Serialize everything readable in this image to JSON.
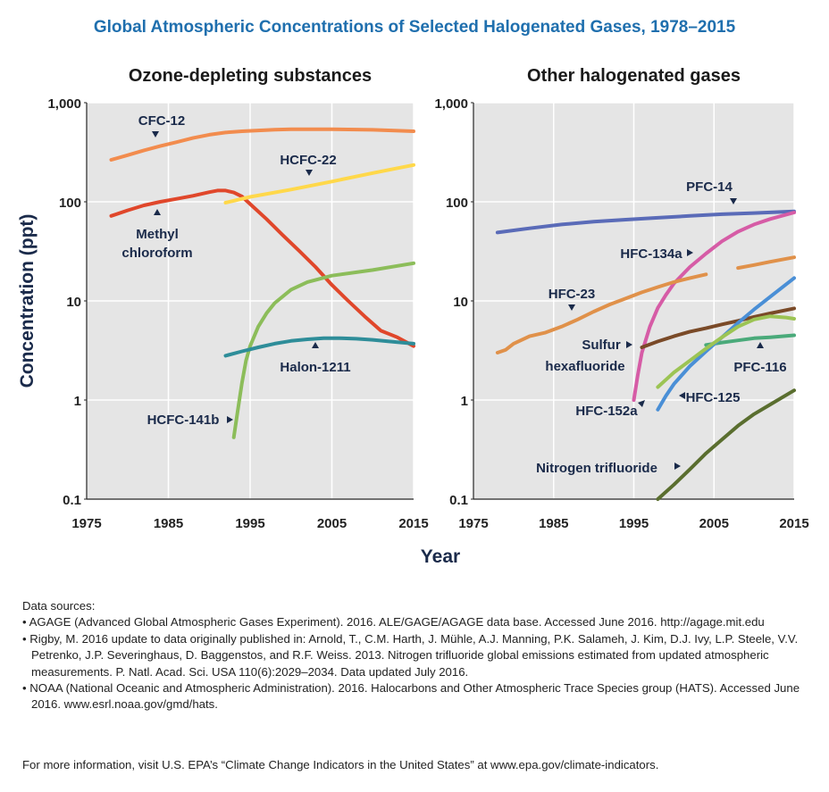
{
  "title": "Global Atmospheric Concentrations of Selected Halogenated Gases, 1978–2015",
  "y_axis_label": "Concentration (ppt)",
  "x_axis_label": "Year",
  "colors": {
    "title": "#1f6fae",
    "plot_bg": "#e5e5e5",
    "grid": "#ffffff",
    "axis_text": "#222222"
  },
  "chart_data": [
    {
      "type": "line",
      "title": "Ozone-depleting substances",
      "xlim": [
        1975,
        2015
      ],
      "ylim": [
        0.1,
        1000
      ],
      "yscale": "log",
      "x_ticks": [
        1975,
        1985,
        1995,
        2005,
        2015
      ],
      "x_tick_labels": [
        "1975",
        "1985",
        "1995",
        "2005",
        "2015"
      ],
      "y_ticks": [
        0.1,
        1,
        10,
        100,
        1000
      ],
      "y_tick_labels": [
        "0.1",
        "1",
        "10",
        "100",
        "1,000"
      ],
      "grid": true,
      "series": [
        {
          "name": "CFC-12",
          "color": "#f28c4e",
          "x": [
            1978,
            1980,
            1982,
            1984,
            1986,
            1988,
            1990,
            1992,
            1994,
            1996,
            1998,
            2000,
            2005,
            2010,
            2015
          ],
          "y": [
            265,
            295,
            330,
            365,
            400,
            440,
            475,
            500,
            515,
            525,
            535,
            540,
            540,
            532,
            515
          ]
        },
        {
          "name": "Methyl chloroform",
          "color": "#e0472b",
          "x": [
            1978,
            1980,
            1982,
            1984,
            1986,
            1988,
            1990,
            1991,
            1992,
            1993,
            1994,
            1995,
            1997,
            1999,
            2001,
            2003,
            2005,
            2007,
            2009,
            2011,
            2013,
            2015
          ],
          "y": [
            72,
            82,
            92,
            100,
            107,
            115,
            125,
            130,
            130,
            124,
            113,
            95,
            67,
            46,
            32,
            22,
            14.5,
            10,
            7,
            5,
            4.3,
            3.5
          ]
        },
        {
          "name": "HCFC-22",
          "color": "#ffd84a",
          "x": [
            1992,
            1995,
            2000,
            2005,
            2010,
            2015
          ],
          "y": [
            98,
            112,
            133,
            160,
            195,
            235
          ]
        },
        {
          "name": "HCFC-141b",
          "color": "#8cbd5a",
          "x": [
            1993,
            1993.5,
            1994,
            1994.5,
            1995,
            1996,
            1997,
            1998,
            2000,
            2002,
            2005,
            2010,
            2015
          ],
          "y": [
            0.42,
            0.8,
            1.5,
            2.5,
            3.5,
            5.5,
            7.5,
            9.5,
            13,
            15.5,
            18,
            20.5,
            24
          ]
        },
        {
          "name": "Halon-1211",
          "color": "#2e8d99",
          "x": [
            1992,
            1994,
            1996,
            1998,
            2000,
            2002,
            2004,
            2006,
            2008,
            2010,
            2012,
            2015
          ],
          "y": [
            2.8,
            3.1,
            3.4,
            3.7,
            3.95,
            4.1,
            4.2,
            4.2,
            4.15,
            4.05,
            3.9,
            3.7
          ]
        }
      ],
      "annotations": [
        "CFC-12",
        "HCFC-22",
        "Methyl",
        "chloroform",
        "Halon-1211",
        "HCFC-141b"
      ]
    },
    {
      "type": "line",
      "title": "Other halogenated gases",
      "xlim": [
        1975,
        2015
      ],
      "ylim": [
        0.1,
        1000
      ],
      "yscale": "log",
      "x_ticks": [
        1975,
        1985,
        1995,
        2005,
        2015
      ],
      "x_tick_labels": [
        "1975",
        "1985",
        "1995",
        "2005",
        "2015"
      ],
      "y_ticks": [
        0.1,
        1,
        10,
        100,
        1000
      ],
      "y_tick_labels": [
        "0.1",
        "1",
        "10",
        "100",
        "1,000"
      ],
      "grid": true,
      "series": [
        {
          "name": "PFC-14",
          "color": "#5a6bb8",
          "x": [
            1978,
            1982,
            1986,
            1990,
            1994,
            1998,
            2002,
            2006,
            2010,
            2015
          ],
          "y": [
            49,
            54,
            59,
            63,
            66,
            69,
            72,
            75,
            77,
            80
          ]
        },
        {
          "name": "HFC-134a",
          "color": "#d65ca6",
          "x": [
            1995,
            1995.5,
            1996,
            1997,
            1998,
            1999,
            2000,
            2002,
            2004,
            2006,
            2008,
            2010,
            2012,
            2015
          ],
          "y": [
            1.0,
            1.8,
            3,
            5.5,
            8.5,
            11.5,
            15,
            22,
            30,
            40,
            50,
            59,
            67,
            78
          ]
        },
        {
          "name": "HFC-23",
          "color": "#e0914a",
          "x": [
            1978,
            1979,
            1980,
            1982,
            1984,
            1986,
            1988,
            1990,
            1992,
            1994,
            1996,
            1998,
            2000,
            2002,
            2004
          ],
          "y": [
            3.0,
            3.2,
            3.7,
            4.4,
            4.8,
            5.5,
            6.5,
            7.8,
            9.2,
            10.6,
            12.2,
            13.8,
            15.5,
            17,
            18.5
          ]
        },
        {
          "name": "HFC-23 (2008–2015)",
          "color": "#e0914a",
          "x": [
            2008,
            2010,
            2012,
            2015
          ],
          "y": [
            21.5,
            23,
            24.8,
            27.5
          ]
        },
        {
          "name": "Sulfur hexafluoride",
          "color": "#7a4a28",
          "x": [
            1996,
            1998,
            2000,
            2002,
            2004,
            2006,
            2008,
            2010,
            2012,
            2015
          ],
          "y": [
            3.4,
            3.9,
            4.4,
            4.9,
            5.3,
            5.8,
            6.3,
            6.9,
            7.5,
            8.4
          ]
        },
        {
          "name": "PFC-116",
          "color": "#4aaa7a",
          "x": [
            2004,
            2006,
            2008,
            2010,
            2012,
            2015
          ],
          "y": [
            3.6,
            3.8,
            4.0,
            4.2,
            4.3,
            4.5
          ]
        },
        {
          "name": "HFC-125",
          "color": "#4a8fd6",
          "x": [
            1998,
            1999,
            2000,
            2002,
            2004,
            2006,
            2008,
            2010,
            2012,
            2015
          ],
          "y": [
            0.8,
            1.1,
            1.45,
            2.2,
            3.1,
            4.3,
            6,
            8.2,
            11,
            17
          ]
        },
        {
          "name": "HFC-152a",
          "color": "#9cc454",
          "x": [
            1998,
            1999,
            2000,
            2002,
            2004,
            2006,
            2008,
            2010,
            2012,
            2014,
            2015
          ],
          "y": [
            1.35,
            1.6,
            1.9,
            2.5,
            3.3,
            4.3,
            5.5,
            6.5,
            7.0,
            6.8,
            6.6
          ]
        },
        {
          "name": "Nitrogen trifluoride",
          "color": "#5a6e2f",
          "x": [
            1998,
            2000,
            2002,
            2004,
            2006,
            2008,
            2010,
            2012,
            2015
          ],
          "y": [
            0.1,
            0.14,
            0.2,
            0.29,
            0.4,
            0.55,
            0.72,
            0.9,
            1.25
          ]
        }
      ],
      "annotations": [
        "PFC-14",
        "HFC-134a",
        "HFC-23",
        "Sulfur",
        "hexafluoride",
        "PFC-116",
        "HFC-152a",
        "HFC-125",
        "Nitrogen trifluoride"
      ]
    }
  ],
  "sources_heading": "Data sources:",
  "sources": [
    "AGAGE (Advanced Global Atmospheric Gases Experiment). 2016. ALE/GAGE/AGAGE data base. Accessed June 2016. http://agage.mit.edu",
    "Rigby, M. 2016 update to data originally published in: Arnold, T., C.M. Harth, J. Mühle, A.J. Manning, P.K. Salameh, J. Kim, D.J. Ivy, L.P. Steele, V.V. Petrenko, J.P. Severinghaus, D. Baggenstos, and R.F. Weiss. 2013. Nitrogen trifluoride global emissions estimated from updated atmospheric measurements. P. Natl. Acad. Sci. USA 110(6):2029–2034. Data updated July 2016.",
    "NOAA (National Oceanic and Atmospheric Administration). 2016. Halocarbons and Other Atmospheric Trace Species group (HATS). Accessed June 2016. www.esrl.noaa.gov/gmd/hats."
  ],
  "more_info": "For more information, visit U.S. EPA’s “Climate Change Indicators in the United States” at www.epa.gov/climate-indicators."
}
